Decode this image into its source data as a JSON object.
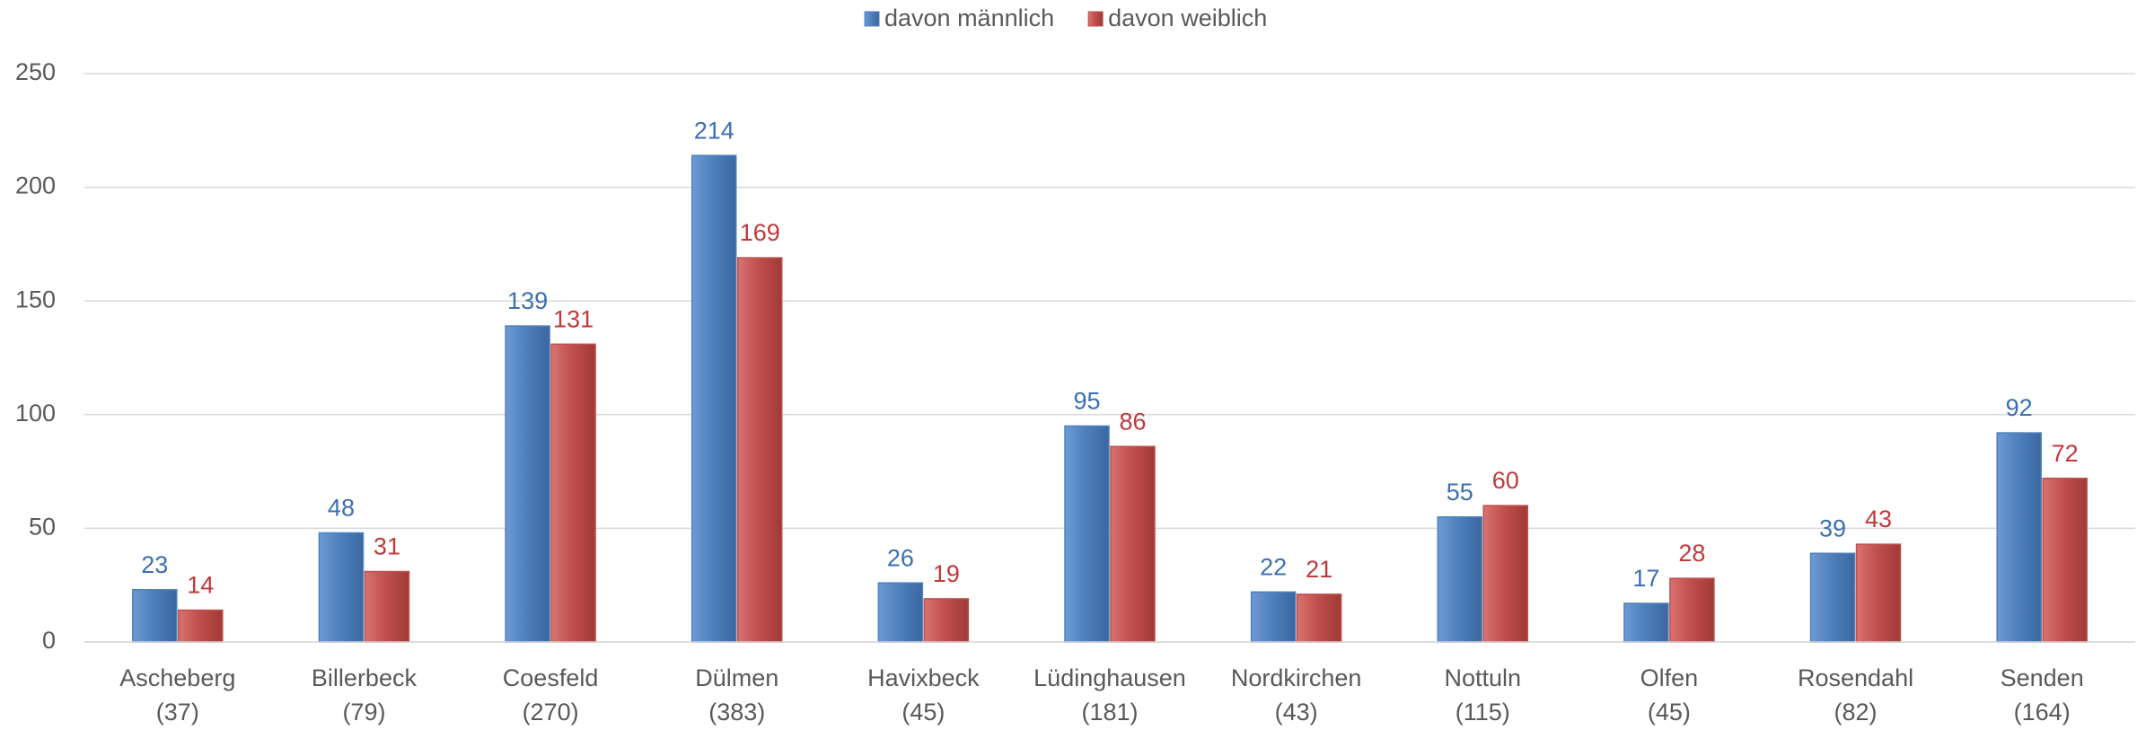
{
  "chart_data": {
    "type": "bar",
    "categories": [
      [
        "Ascheberg",
        "(37)"
      ],
      [
        "Billerbeck",
        "(79)"
      ],
      [
        "Coesfeld",
        "(270)"
      ],
      [
        "Dülmen",
        "(383)"
      ],
      [
        "Havixbeck",
        "(45)"
      ],
      [
        "Lüdinghausen",
        "(181)"
      ],
      [
        "Nordkirchen",
        "(43)"
      ],
      [
        "Nottuln",
        "(115)"
      ],
      [
        "Olfen",
        "(45)"
      ],
      [
        "Rosendahl",
        "(82)"
      ],
      [
        "Senden",
        "(164)"
      ]
    ],
    "series": [
      {
        "name": "davon männlich",
        "color": "#4f81bd",
        "label_color": "#3d6fb0",
        "values": [
          23,
          48,
          139,
          214,
          26,
          95,
          22,
          55,
          17,
          39,
          92
        ]
      },
      {
        "name": "davon weiblich",
        "color": "#c0504d",
        "label_color": "#c0393b",
        "values": [
          14,
          31,
          131,
          169,
          19,
          86,
          21,
          60,
          28,
          43,
          72
        ]
      }
    ],
    "ylim": [
      0,
      250
    ],
    "yticks": [
      0,
      50,
      100,
      150,
      200,
      250
    ],
    "grid": true,
    "legend": "top"
  }
}
